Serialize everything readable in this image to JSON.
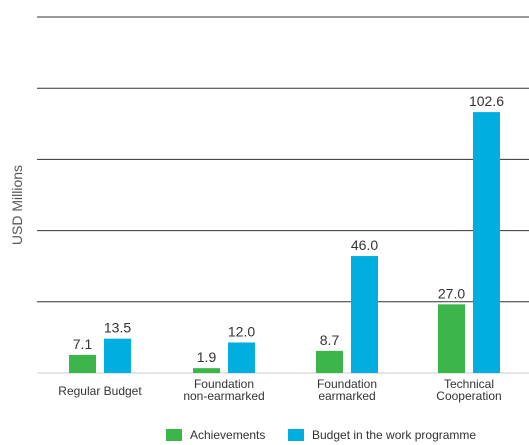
{
  "chart_data": {
    "type": "bar",
    "ylabel": "USD Millions",
    "ylim": [
      0,
      140
    ],
    "grid": true,
    "legend_position": "bottom",
    "categories": [
      [
        "Regular Budget"
      ],
      [
        "Foundation",
        "non-earmarked"
      ],
      [
        "Foundation",
        "earmarked"
      ],
      [
        "Technical",
        "Cooperation"
      ]
    ],
    "series": [
      {
        "name": "Achievements",
        "color": "#3cb54a",
        "values": [
          7.1,
          1.9,
          8.7,
          27.0
        ],
        "labels": [
          "7.1",
          "1.9",
          "8.7",
          "27.0"
        ]
      },
      {
        "name": "Budget in the work programme",
        "color": "#00afe0",
        "values": [
          13.5,
          12.0,
          46.0,
          102.6
        ],
        "labels": [
          "13.5",
          "12.0",
          "46.0",
          "102.6"
        ]
      }
    ]
  }
}
